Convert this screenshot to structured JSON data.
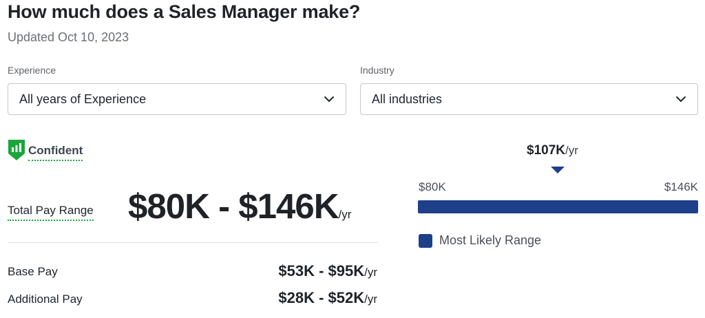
{
  "header": {
    "title": "How much does a Sales Manager make?",
    "updated": "Updated Oct 10, 2023"
  },
  "filters": {
    "experience": {
      "label": "Experience",
      "value": "All years of Experience"
    },
    "industry": {
      "label": "Industry",
      "value": "All industries"
    }
  },
  "confidence": {
    "label": "Confident",
    "icon": "bar-chart-shield-icon",
    "color": "#1aa63a"
  },
  "pay": {
    "total_label": "Total Pay Range",
    "total_range": "$80K - $146K",
    "unit": "/yr",
    "rows": [
      {
        "label": "Base Pay",
        "value": "$53K - $95K"
      },
      {
        "label": "Additional Pay",
        "value": "$28K - $52K"
      }
    ]
  },
  "range_chart": {
    "median_label": "$107K",
    "unit": "/yr",
    "low_label": "$80K",
    "high_label": "$146K",
    "low_k": 80,
    "high_k": 146,
    "median_k": 107,
    "likely_low_k": 80,
    "likely_high_k": 146,
    "legend_label": "Most Likely Range",
    "bar_color": "#1e3f8a"
  }
}
